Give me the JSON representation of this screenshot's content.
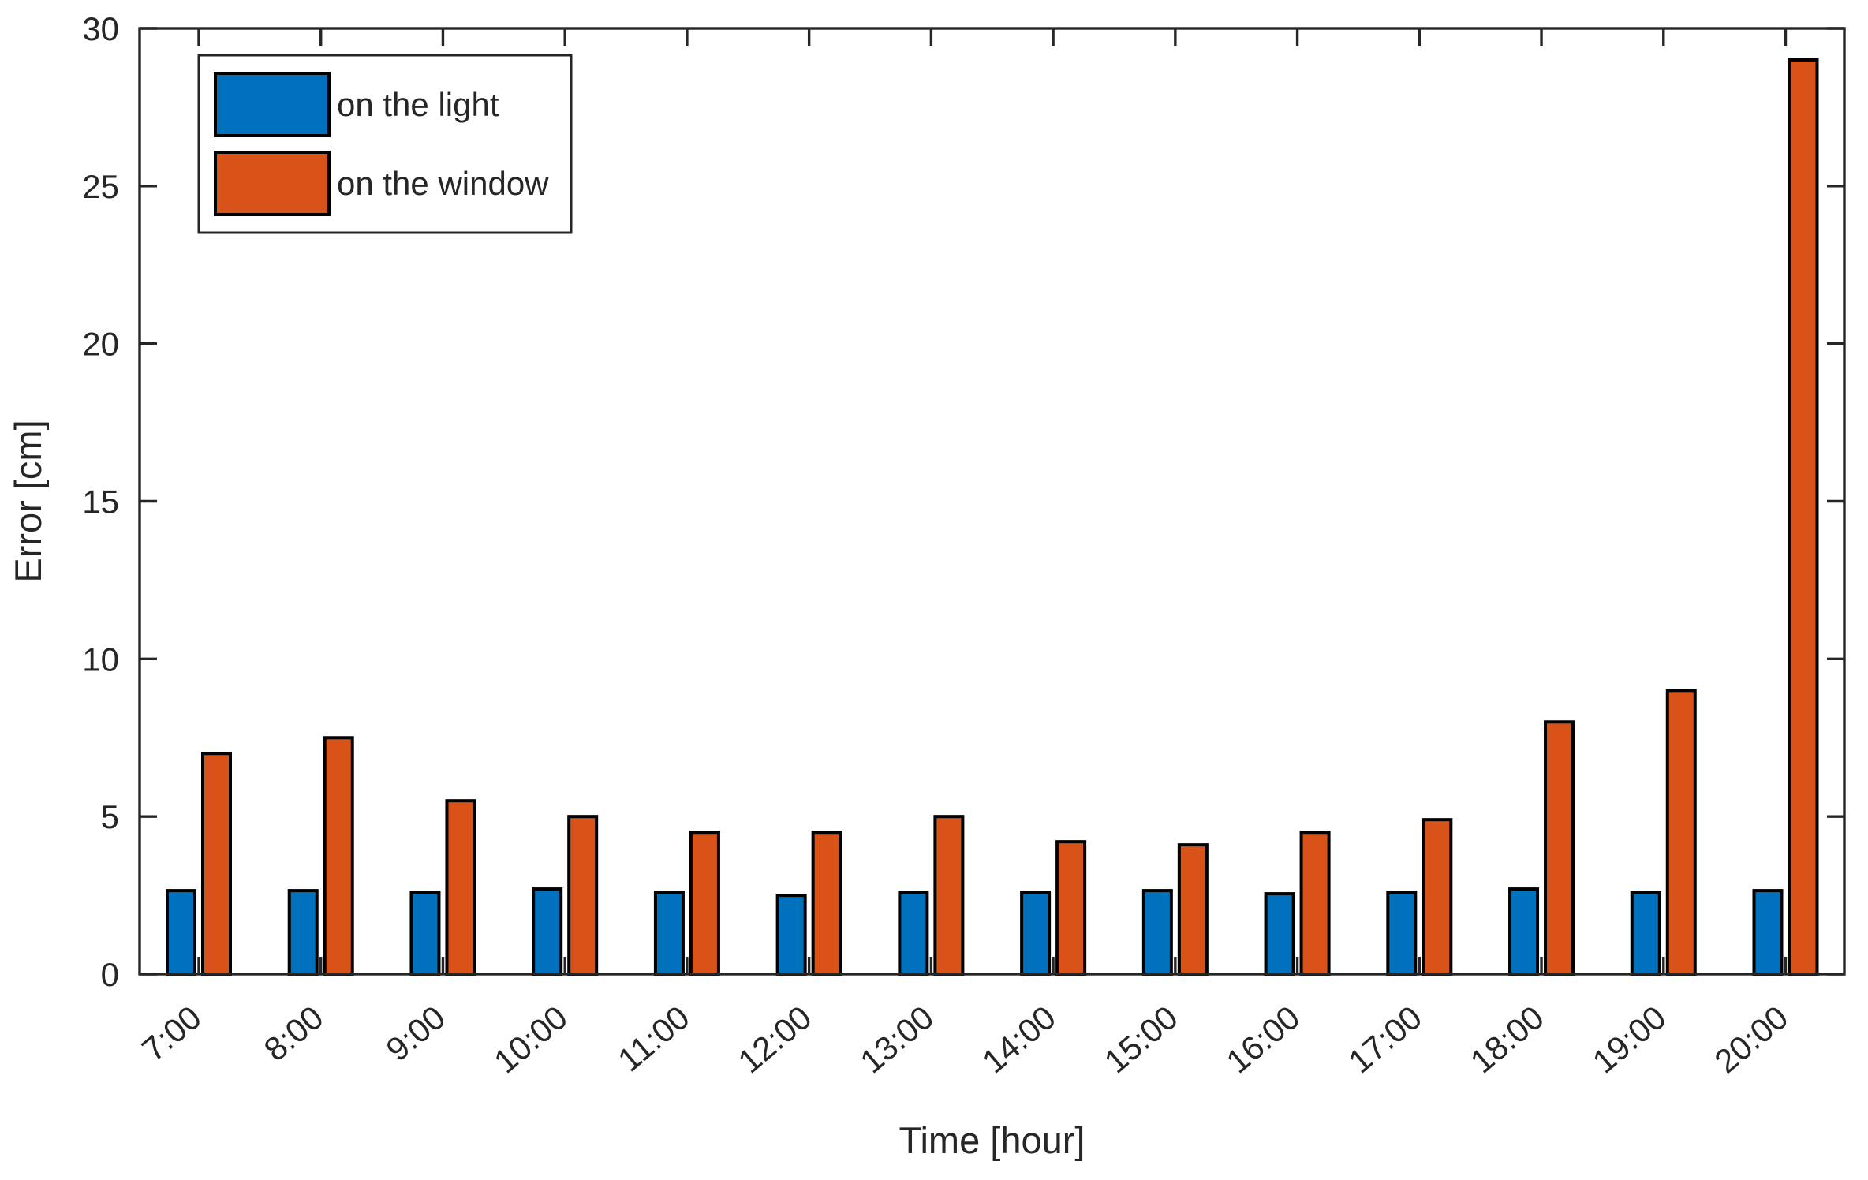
{
  "figure": {
    "background": "#ffffff",
    "axes_color": "#262626",
    "bar_edge_color": "#000000"
  },
  "chart_data": {
    "type": "bar",
    "title": "",
    "xlabel": "Time [hour]",
    "ylabel": "Error [cm]",
    "categories": [
      "7:00",
      "8:00",
      "9:00",
      "10:00",
      "11:00",
      "12:00",
      "13:00",
      "14:00",
      "15:00",
      "16:00",
      "17:00",
      "18:00",
      "19:00",
      "20:00"
    ],
    "series": [
      {
        "name": "on the light",
        "color": "#0072BD",
        "values": [
          2.65,
          2.65,
          2.6,
          2.7,
          2.6,
          2.5,
          2.6,
          2.6,
          2.65,
          2.55,
          2.6,
          2.7,
          2.6,
          2.65
        ]
      },
      {
        "name": "on the window",
        "color": "#D95319",
        "values": [
          7.0,
          7.5,
          5.5,
          5.0,
          4.5,
          4.5,
          5.0,
          4.2,
          4.1,
          4.5,
          4.9,
          8.0,
          9.0,
          29.0
        ]
      }
    ],
    "ylim": [
      0,
      30
    ],
    "yticks": [
      0,
      5,
      10,
      15,
      20,
      25,
      30
    ],
    "ytick_labels": [
      "0",
      "5",
      "10",
      "15",
      "20",
      "25",
      "30"
    ],
    "grid": false,
    "legend_position": "top-left-inside",
    "tick_direction": "in",
    "xtick_rotation_deg": 40
  },
  "legend": {
    "items": [
      {
        "label": "on the light",
        "color": "#0072BD"
      },
      {
        "label": "on the window",
        "color": "#D95319"
      }
    ]
  }
}
